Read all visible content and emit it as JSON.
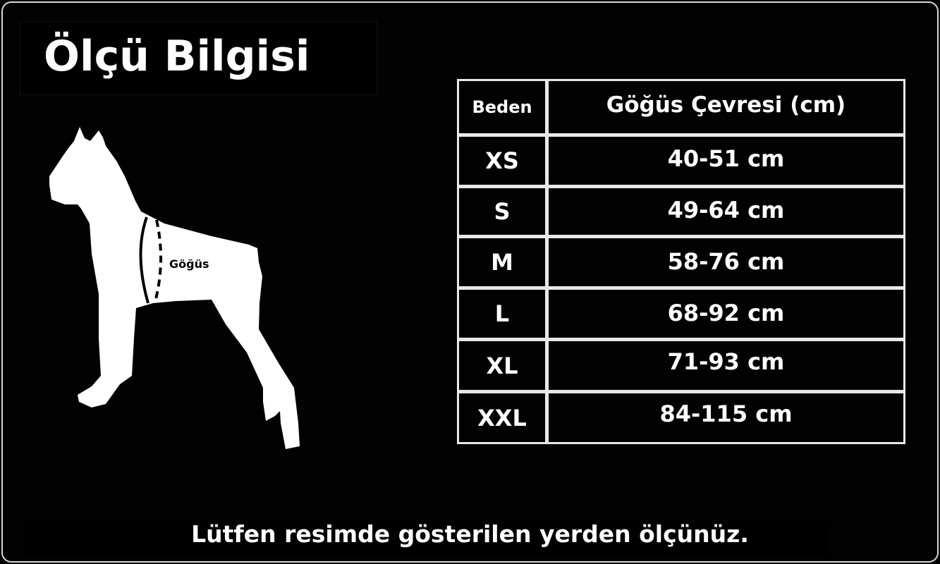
{
  "title": "Ölçü Bilgisi",
  "illustration": {
    "measure_label": "Göğüs"
  },
  "table": {
    "headers": [
      "Beden",
      "Göğüs Çevresi (cm)"
    ],
    "rows": [
      {
        "size": "XS",
        "chest": "40-51 cm"
      },
      {
        "size": "S",
        "chest": "49-64 cm"
      },
      {
        "size": "M",
        "chest": "58-76 cm"
      },
      {
        "size": "L",
        "chest": "68-92 cm"
      },
      {
        "size": "XL",
        "chest": "71-93 cm"
      },
      {
        "size": "XXL",
        "chest": "84-115 cm"
      }
    ]
  },
  "note": "Lütfen resimde gösterilen yerden ölçünüz.",
  "colors": {
    "background": "#000000",
    "text": "#ffffff",
    "border": "#e8e8e8"
  }
}
